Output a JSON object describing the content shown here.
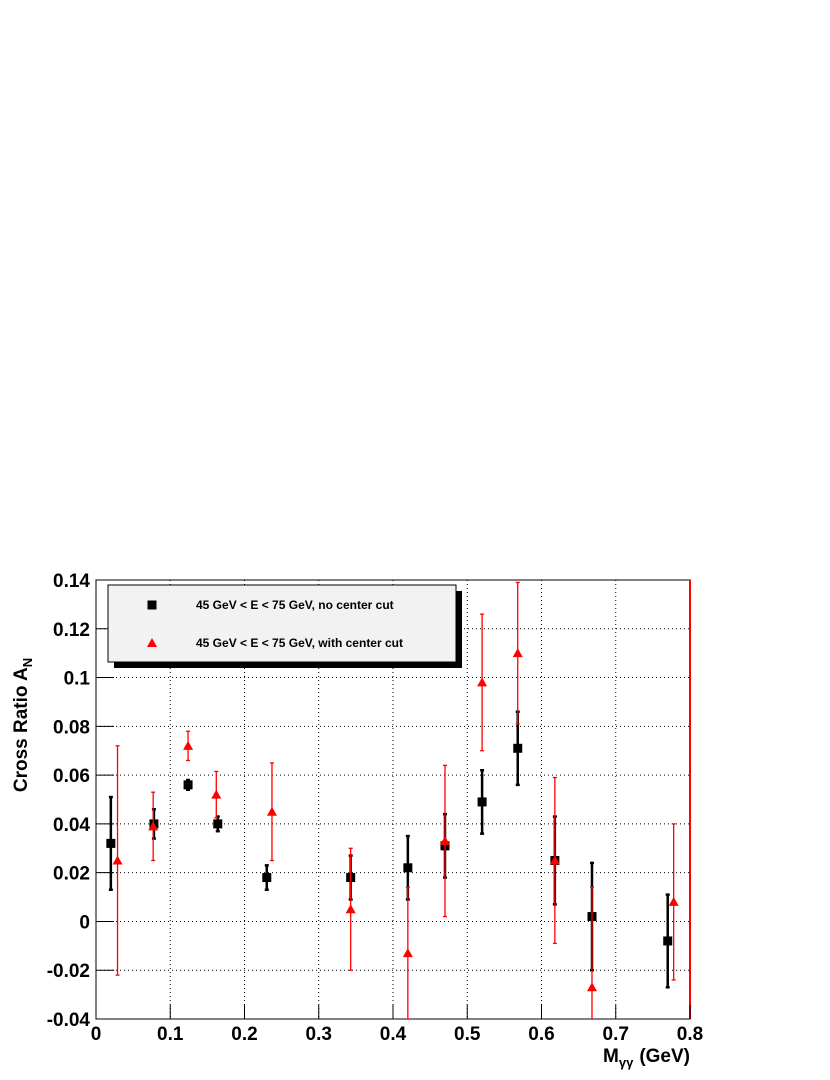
{
  "chart_data": {
    "type": "errorbar-scatter",
    "xlabel": {
      "main": "M",
      "sub": "γγ",
      "unit": "(GeV)"
    },
    "ylabel": {
      "main": "Cross Ratio A",
      "sub": "N"
    },
    "xlim": [
      0,
      0.8
    ],
    "xticks": [
      0,
      0.1,
      0.2,
      0.3,
      0.4,
      0.5,
      0.6,
      0.7,
      0.8
    ],
    "ylim": [
      -0.04,
      0.14
    ],
    "yticks": [
      -0.04,
      -0.02,
      0,
      0.02,
      0.04,
      0.06,
      0.08,
      0.1,
      0.12,
      0.14
    ],
    "grid": true,
    "legend": "top-left",
    "series": [
      {
        "name": "45 GeV < E < 75 GeV, no center cut",
        "color": "#000000",
        "marker": "square",
        "x": [
          0.02,
          0.078,
          0.124,
          0.164,
          0.23,
          0.343,
          0.42,
          0.47,
          0.52,
          0.568,
          0.618,
          0.668,
          0.77
        ],
        "values": [
          0.032,
          0.04,
          0.056,
          0.04,
          0.018,
          0.018,
          0.022,
          0.031,
          0.049,
          0.071,
          0.025,
          0.002,
          -0.008
        ],
        "errors": [
          0.019,
          0.006,
          0.002,
          0.003,
          0.005,
          0.009,
          0.013,
          0.013,
          0.013,
          0.015,
          0.018,
          0.022,
          0.019
        ]
      },
      {
        "name": "45 GeV < E < 75 GeV, with center cut",
        "color": "#ff0000",
        "marker": "triangle",
        "x": [
          0.029,
          0.077,
          0.124,
          0.162,
          0.237,
          0.343,
          0.42,
          0.47,
          0.52,
          0.568,
          0.618,
          0.668,
          0.778
        ],
        "values": [
          0.025,
          0.039,
          0.072,
          0.052,
          0.045,
          0.005,
          -0.013,
          0.033,
          0.098,
          0.11,
          0.025,
          -0.027,
          0.008
        ],
        "errors": [
          0.047,
          0.014,
          0.006,
          0.0095,
          0.02,
          0.025,
          0.027,
          0.031,
          0.028,
          0.029,
          0.034,
          0.041,
          0.032
        ]
      }
    ]
  }
}
